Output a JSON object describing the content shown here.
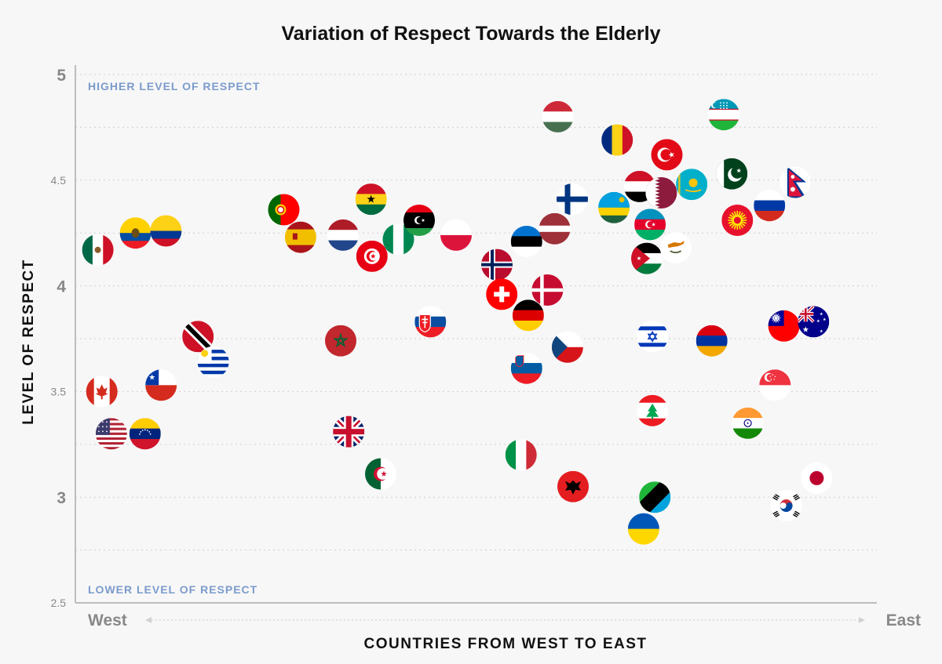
{
  "chart_data": {
    "type": "scatter",
    "title": "Variation of Respect Towards the Elderly",
    "xlabel": "COUNTRIES FROM WEST TO EAST",
    "ylabel": "LEVEL OF RESPECT",
    "x_start_label": "West",
    "x_end_label": "East",
    "annotation_top": "HIGHER LEVEL OF RESPECT",
    "annotation_bottom": "LOWER LEVEL OF RESPECT",
    "xlim": [
      0,
      100
    ],
    "ylim": [
      2.5,
      5
    ],
    "y_ticks": [
      {
        "value": 5,
        "label": "5",
        "major": true
      },
      {
        "value": 4.5,
        "label": "4.5",
        "major": false
      },
      {
        "value": 4,
        "label": "4",
        "major": true
      },
      {
        "value": 3.5,
        "label": "3.5",
        "major": false
      },
      {
        "value": 3,
        "label": "3",
        "major": true
      },
      {
        "value": 2.5,
        "label": "2.5",
        "major": false
      }
    ],
    "y_gridlines": [
      2.75,
      3,
      3.25,
      3.5,
      3.75,
      4,
      4.25,
      4.5,
      4.75,
      5
    ],
    "grid": true,
    "points": [
      {
        "country": "Mexico",
        "x": 2.8,
        "y": 4.17,
        "flag": "mexico"
      },
      {
        "country": "Ecuador",
        "x": 7.5,
        "y": 4.25,
        "flag": "ecuador"
      },
      {
        "country": "Colombia",
        "x": 11.3,
        "y": 4.26,
        "flag": "colombia"
      },
      {
        "country": "Canada",
        "x": 3.3,
        "y": 3.5,
        "flag": "canada"
      },
      {
        "country": "United States",
        "x": 4.5,
        "y": 3.3,
        "flag": "usa"
      },
      {
        "country": "Venezuela",
        "x": 8.7,
        "y": 3.3,
        "flag": "venezuela"
      },
      {
        "country": "Chile",
        "x": 10.7,
        "y": 3.53,
        "flag": "chile"
      },
      {
        "country": "Trinidad and Tobago",
        "x": 15.3,
        "y": 3.76,
        "flag": "trinidad"
      },
      {
        "country": "Uruguay",
        "x": 17.2,
        "y": 3.64,
        "flag": "uruguay"
      },
      {
        "country": "Portugal",
        "x": 26.0,
        "y": 4.36,
        "flag": "portugal"
      },
      {
        "country": "Spain",
        "x": 28.1,
        "y": 4.23,
        "flag": "spain"
      },
      {
        "country": "Netherlands",
        "x": 33.4,
        "y": 4.24,
        "flag": "netherlands"
      },
      {
        "country": "Ghana",
        "x": 36.9,
        "y": 4.41,
        "flag": "ghana"
      },
      {
        "country": "Tunisia",
        "x": 37.0,
        "y": 4.14,
        "flag": "tunisia"
      },
      {
        "country": "Nigeria",
        "x": 40.3,
        "y": 4.22,
        "flag": "nigeria"
      },
      {
        "country": "Libya",
        "x": 42.9,
        "y": 4.31,
        "flag": "libya"
      },
      {
        "country": "Poland",
        "x": 47.5,
        "y": 4.24,
        "flag": "poland"
      },
      {
        "country": "Morocco",
        "x": 33.1,
        "y": 3.74,
        "flag": "morocco"
      },
      {
        "country": "United Kingdom",
        "x": 34.1,
        "y": 3.31,
        "flag": "uk"
      },
      {
        "country": "Algeria",
        "x": 38.1,
        "y": 3.11,
        "flag": "algeria"
      },
      {
        "country": "Slovakia",
        "x": 44.3,
        "y": 3.83,
        "flag": "slovakia"
      },
      {
        "country": "Norway",
        "x": 52.6,
        "y": 4.1,
        "flag": "norway"
      },
      {
        "country": "Switzerland",
        "x": 53.2,
        "y": 3.96,
        "flag": "switzerland"
      },
      {
        "country": "Estonia",
        "x": 56.3,
        "y": 4.21,
        "flag": "estonia"
      },
      {
        "country": "Germany",
        "x": 56.5,
        "y": 3.86,
        "flag": "germany"
      },
      {
        "country": "Denmark",
        "x": 58.9,
        "y": 3.98,
        "flag": "denmark"
      },
      {
        "country": "Slovenia",
        "x": 56.3,
        "y": 3.61,
        "flag": "slovenia"
      },
      {
        "country": "Czech Republic",
        "x": 61.4,
        "y": 3.71,
        "flag": "czech"
      },
      {
        "country": "Italy",
        "x": 55.6,
        "y": 3.2,
        "flag": "italy"
      },
      {
        "country": "Albania",
        "x": 62.1,
        "y": 3.05,
        "flag": "albania"
      },
      {
        "country": "Hungary",
        "x": 60.2,
        "y": 4.8,
        "flag": "hungary"
      },
      {
        "country": "Latvia",
        "x": 59.8,
        "y": 4.27,
        "flag": "latvia"
      },
      {
        "country": "Finland",
        "x": 62.0,
        "y": 4.41,
        "flag": "finland"
      },
      {
        "country": "Romania",
        "x": 67.6,
        "y": 4.69,
        "flag": "romania"
      },
      {
        "country": "Rwanda",
        "x": 67.2,
        "y": 4.37,
        "flag": "rwanda"
      },
      {
        "country": "Yemen",
        "x": 70.4,
        "y": 4.47,
        "flag": "yemen"
      },
      {
        "country": "Qatar",
        "x": 73.1,
        "y": 4.44,
        "flag": "qatar"
      },
      {
        "country": "Turkey",
        "x": 73.8,
        "y": 4.62,
        "flag": "turkey"
      },
      {
        "country": "Azerbaijan",
        "x": 71.7,
        "y": 4.29,
        "flag": "azerbaijan"
      },
      {
        "country": "Jordan",
        "x": 71.3,
        "y": 4.13,
        "flag": "jordan"
      },
      {
        "country": "Cyprus",
        "x": 74.9,
        "y": 4.18,
        "flag": "cyprus"
      },
      {
        "country": "Kazakhstan",
        "x": 76.9,
        "y": 4.48,
        "flag": "kazakhstan"
      },
      {
        "country": "Uzbekistan",
        "x": 80.9,
        "y": 4.81,
        "flag": "uzbekistan"
      },
      {
        "country": "Pakistan",
        "x": 81.9,
        "y": 4.53,
        "flag": "pakistan"
      },
      {
        "country": "Kyrgyzstan",
        "x": 82.6,
        "y": 4.31,
        "flag": "kyrgyzstan"
      },
      {
        "country": "Russia",
        "x": 86.6,
        "y": 4.38,
        "flag": "russia"
      },
      {
        "country": "Nepal",
        "x": 89.8,
        "y": 4.49,
        "flag": "nepal"
      },
      {
        "country": "Israel",
        "x": 72.0,
        "y": 3.76,
        "flag": "israel"
      },
      {
        "country": "Armenia",
        "x": 79.4,
        "y": 3.74,
        "flag": "armenia"
      },
      {
        "country": "Lebanon",
        "x": 72.0,
        "y": 3.41,
        "flag": "lebanon"
      },
      {
        "country": "Tanzania",
        "x": 72.3,
        "y": 3.0,
        "flag": "tanzania"
      },
      {
        "country": "Ukraine",
        "x": 70.9,
        "y": 2.85,
        "flag": "ukraine"
      },
      {
        "country": "India",
        "x": 83.9,
        "y": 3.35,
        "flag": "india"
      },
      {
        "country": "Singapore",
        "x": 87.3,
        "y": 3.53,
        "flag": "singapore"
      },
      {
        "country": "Taiwan",
        "x": 88.4,
        "y": 3.81,
        "flag": "taiwan"
      },
      {
        "country": "Australia",
        "x": 92.1,
        "y": 3.83,
        "flag": "australia"
      },
      {
        "country": "Japan",
        "x": 92.5,
        "y": 3.09,
        "flag": "japan"
      },
      {
        "country": "South Korea",
        "x": 88.7,
        "y": 2.96,
        "flag": "south-korea"
      }
    ]
  }
}
